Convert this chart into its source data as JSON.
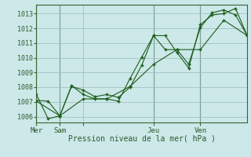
{
  "title": "Pression niveau de la mer( hPa )",
  "background_color": "#cce8e8",
  "grid_color": "#99bbbb",
  "line_color": "#1a5c1a",
  "ylabel_values": [
    1006,
    1007,
    1008,
    1009,
    1010,
    1011,
    1012,
    1013
  ],
  "x_ticks": [
    0,
    12,
    24,
    60,
    84
  ],
  "x_tick_labels": [
    "Mer",
    "Sam",
    "",
    "Jeu",
    "Ven"
  ],
  "x_vlines": [
    0,
    12,
    60,
    84
  ],
  "xlim": [
    0,
    108
  ],
  "ylim": [
    1005.6,
    1013.6
  ],
  "series": [
    {
      "x": [
        0,
        6,
        12,
        18,
        24,
        30,
        36,
        42,
        48,
        54,
        60,
        66,
        72,
        78,
        84,
        90,
        96,
        102,
        108
      ],
      "y": [
        1007.5,
        1005.85,
        1006.05,
        1008.05,
        1007.8,
        1007.35,
        1007.5,
        1007.3,
        1008.0,
        1009.5,
        1011.5,
        1011.5,
        1010.35,
        1009.3,
        1012.25,
        1012.9,
        1013.0,
        1013.35,
        1011.5
      ]
    },
    {
      "x": [
        0,
        6,
        12,
        18,
        24,
        30,
        36,
        42,
        48,
        54,
        60,
        66,
        72,
        78,
        84,
        90,
        96,
        102,
        108
      ],
      "y": [
        1007.1,
        1007.05,
        1006.05,
        1008.1,
        1007.5,
        1007.2,
        1007.2,
        1007.05,
        1008.6,
        1010.05,
        1011.5,
        1010.55,
        1010.55,
        1009.55,
        1012.05,
        1013.05,
        1013.25,
        1012.9,
        1011.5
      ]
    },
    {
      "x": [
        0,
        12,
        24,
        36,
        48,
        60,
        72,
        84,
        96,
        108
      ],
      "y": [
        1007.05,
        1006.05,
        1007.2,
        1007.2,
        1008.05,
        1009.55,
        1010.55,
        1010.55,
        1012.55,
        1011.5
      ]
    }
  ]
}
